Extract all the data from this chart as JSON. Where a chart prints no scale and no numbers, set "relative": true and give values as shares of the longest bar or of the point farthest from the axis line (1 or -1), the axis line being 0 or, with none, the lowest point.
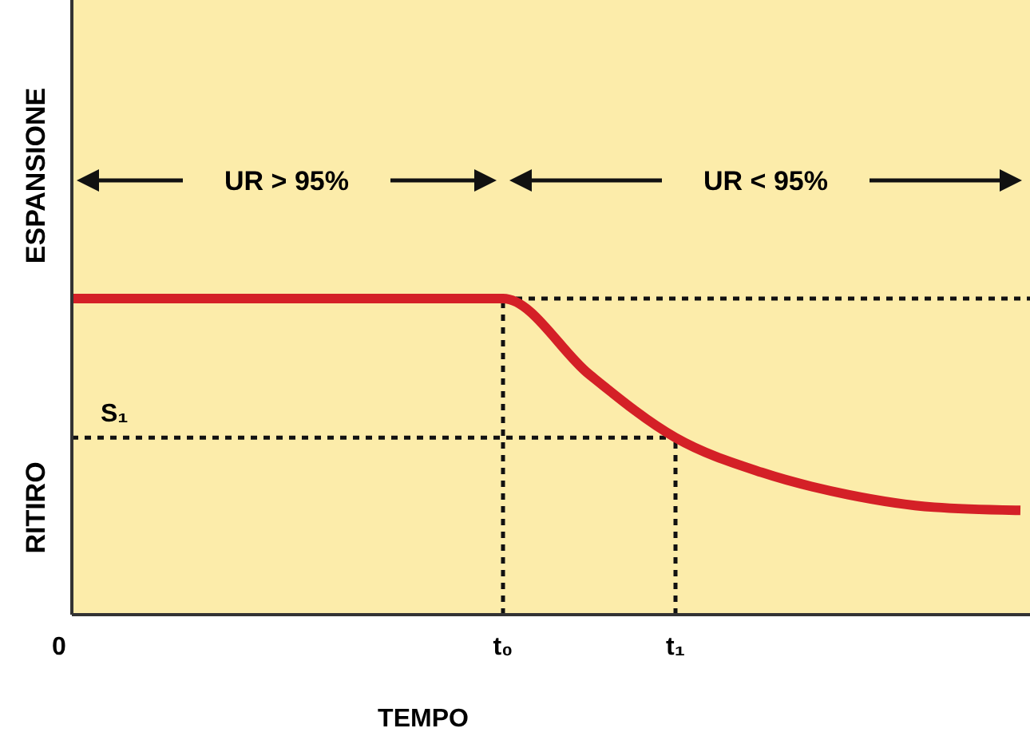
{
  "chart_data": {
    "type": "line",
    "relative": true,
    "xlabel": "TEMPO",
    "categories": [
      "0",
      null,
      null,
      null,
      null,
      "t₀",
      null,
      "t₁",
      null,
      null,
      null,
      null
    ],
    "series": [
      {
        "color": "#d42027",
        "values": [
          1,
          1,
          1,
          1,
          1,
          1,
          0.76,
          0.56,
          0.45,
          0.38,
          0.34,
          0.33
        ]
      }
    ],
    "ref_lines": [
      {
        "axis": "y",
        "value": 1,
        "line_style": "dotted"
      },
      {
        "axis": "y",
        "value": 0.56,
        "label": "S₁",
        "line_style": "dotted"
      },
      {
        "axis": "x",
        "value": "t₀",
        "line_style": "dotted"
      },
      {
        "axis": "x",
        "value": "t₁",
        "line_style": "dotted"
      }
    ],
    "annotations": [
      "UR > 95%",
      "UR < 95%",
      "ESPANSIONE",
      "RITIRO"
    ],
    "marker": "none",
    "line_style": "solid",
    "grid": false
  }
}
